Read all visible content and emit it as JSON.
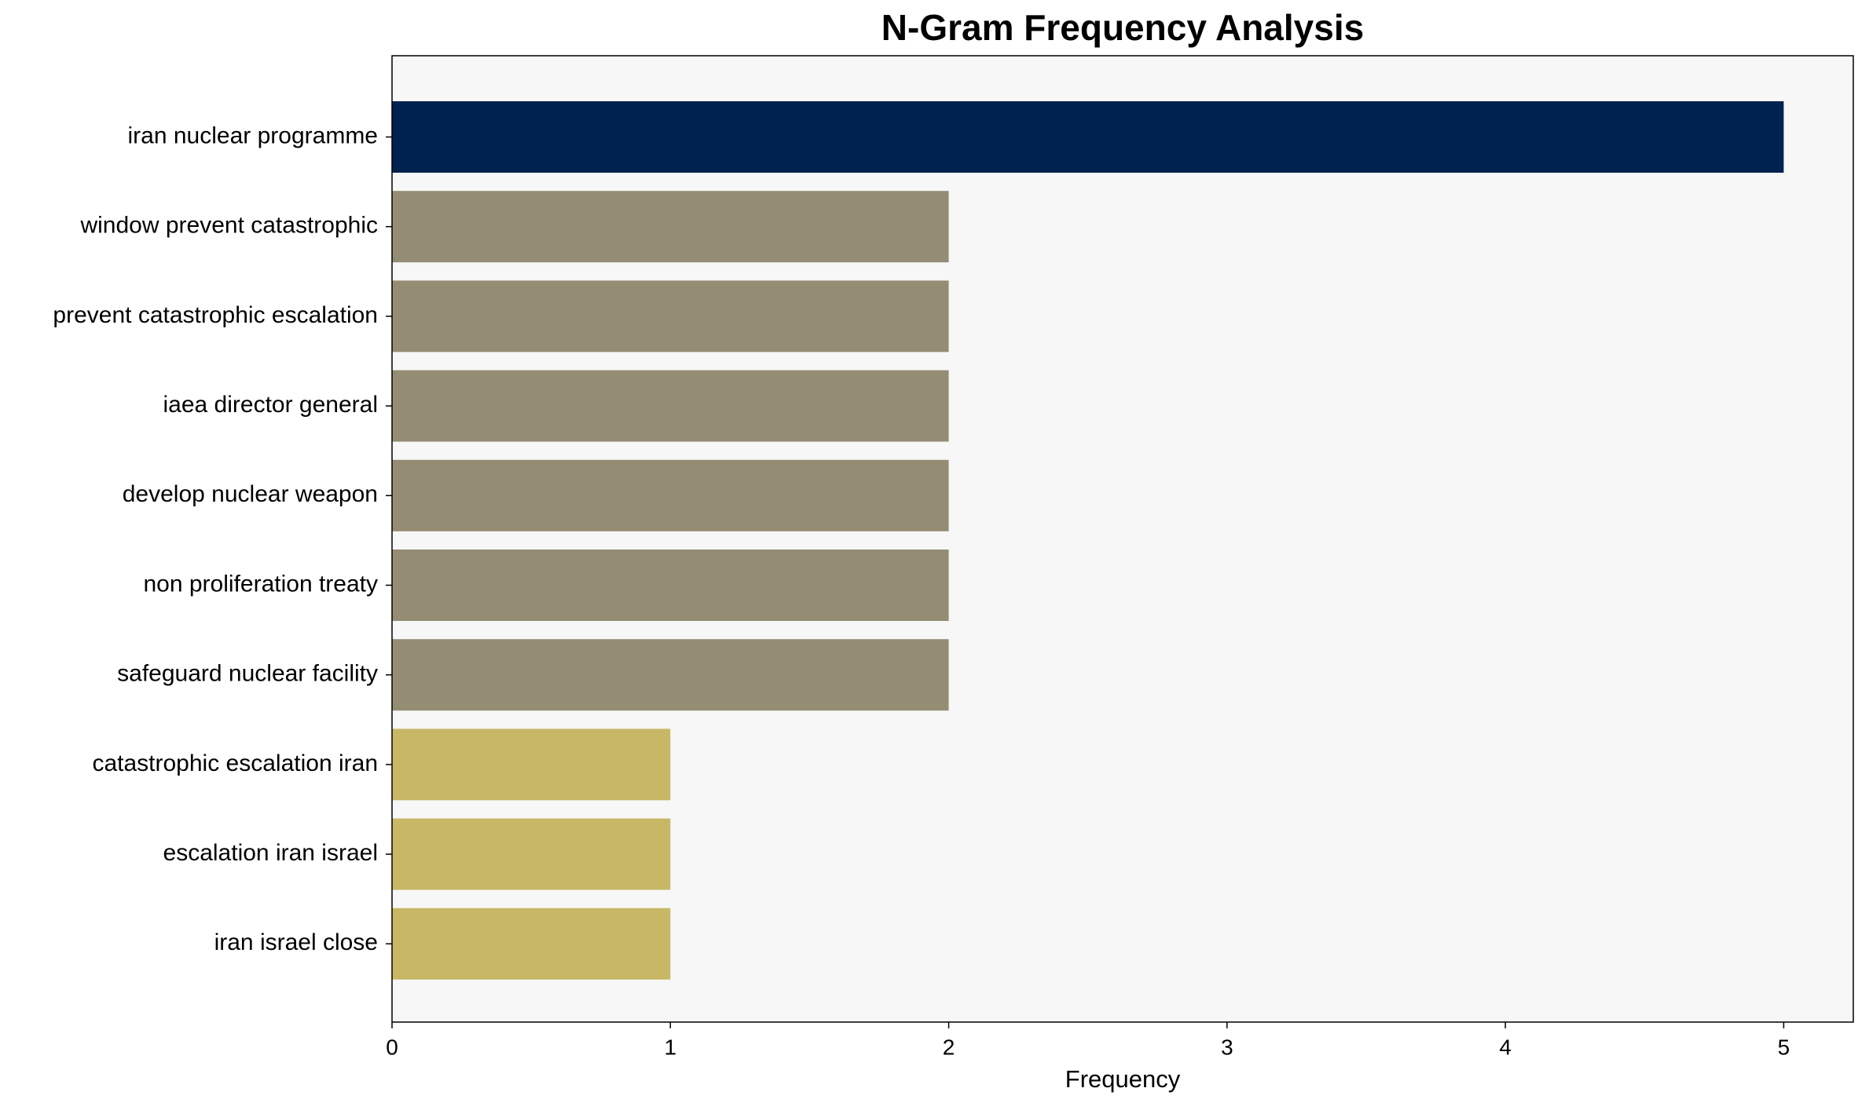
{
  "chart_data": {
    "type": "barh",
    "title": "N-Gram Frequency Analysis",
    "x_label": "Frequency",
    "categories": [
      "iran nuclear programme",
      "window prevent catastrophic",
      "prevent catastrophic escalation",
      "iaea director general",
      "develop nuclear weapon",
      "non proliferation treaty",
      "safeguard nuclear facility",
      "catastrophic escalation iran",
      "escalation iran israel",
      "iran israel close"
    ],
    "values": [
      5,
      2,
      2,
      2,
      2,
      2,
      2,
      1,
      1,
      1
    ],
    "colors": [
      "#00224e",
      "#948d74",
      "#948d74",
      "#948d74",
      "#948d74",
      "#948d74",
      "#948d74",
      "#c8b866",
      "#c8b866",
      "#c8b866"
    ],
    "xlim": [
      0,
      5.25
    ],
    "xticks": [
      0,
      1,
      2,
      3,
      4,
      5
    ],
    "background": "#f7f7f7"
  }
}
